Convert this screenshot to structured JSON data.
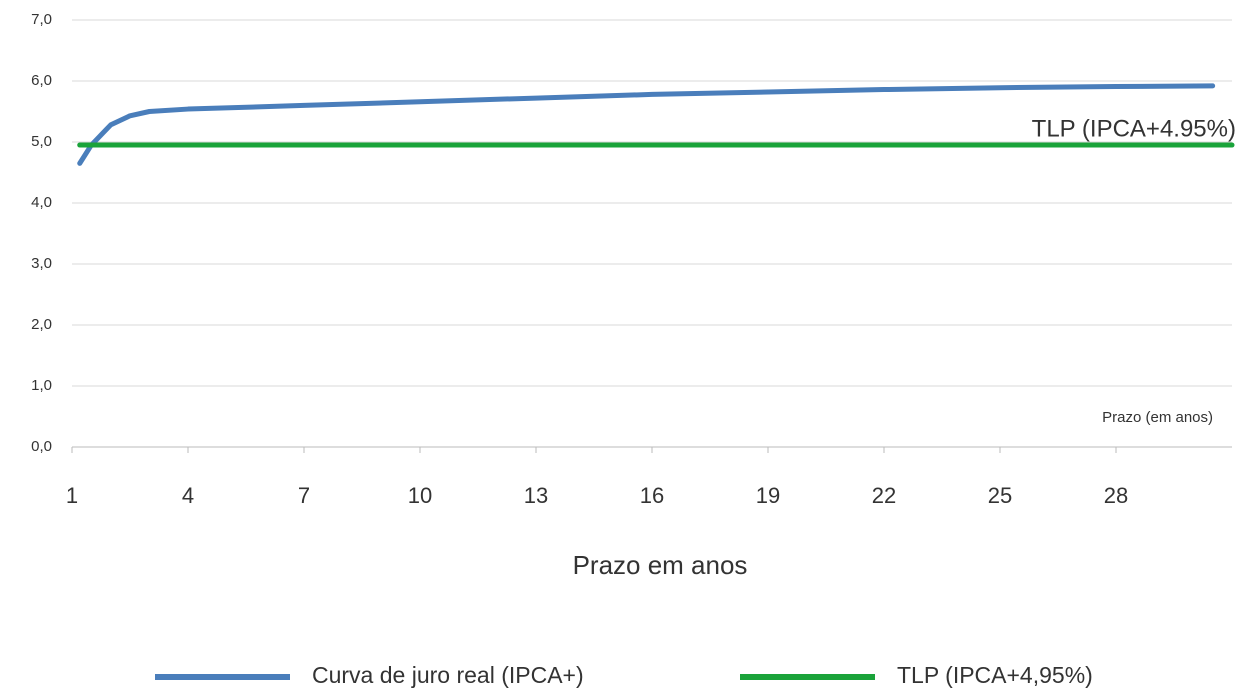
{
  "chart_data": {
    "type": "line",
    "x_label": "Prazo em anos",
    "annotations": [
      "TLP (IPCA+4.95%)",
      "Prazo (em anos)"
    ],
    "xlim": [
      1,
      31
    ],
    "xticks": [
      1,
      4,
      7,
      10,
      13,
      16,
      19,
      22,
      25,
      28
    ],
    "ylim": [
      0,
      7
    ],
    "yticks": [
      {
        "value": 0,
        "label": "0,0"
      },
      {
        "value": 1,
        "label": "1,0"
      },
      {
        "value": 2,
        "label": "2,0"
      },
      {
        "value": 3,
        "label": "3,0"
      },
      {
        "value": 4,
        "label": "4,0"
      },
      {
        "value": 5,
        "label": "5,0"
      },
      {
        "value": 6,
        "label": "6,0"
      },
      {
        "value": 7,
        "label": "7,0"
      }
    ],
    "grid": true,
    "legend": "bottom",
    "series": [
      {
        "name": "Curva de juro real (IPCA+)",
        "color": "#4a7ebb",
        "x": [
          1.2,
          1.5,
          2,
          2.5,
          3,
          4,
          7,
          10,
          13,
          16,
          19,
          22,
          25,
          28,
          30.5
        ],
        "values": [
          4.65,
          4.95,
          5.28,
          5.43,
          5.5,
          5.54,
          5.6,
          5.66,
          5.72,
          5.78,
          5.82,
          5.86,
          5.89,
          5.91,
          5.92
        ]
      },
      {
        "name": "TLP (IPCA+4,95%)",
        "color": "#1aa33a",
        "x": [
          1.2,
          31
        ],
        "values": [
          4.95,
          4.95
        ]
      }
    ]
  }
}
